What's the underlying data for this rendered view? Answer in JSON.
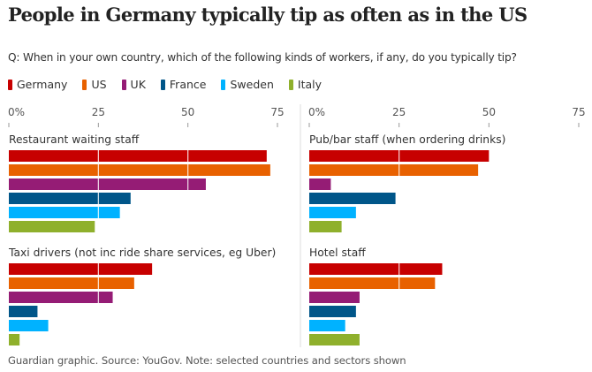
{
  "header": {
    "title": "People in Germany typically tip as often as in the US",
    "question": "Q: When in your own country, which of the following kinds of workers, if any, do you typically tip?"
  },
  "footer": {
    "source": "Guardian graphic. Source: YouGov. Note: selected countries and sectors shown"
  },
  "chart_data": {
    "type": "bar",
    "orientation": "horizontal",
    "title": "People in Germany typically tip as often as in the US",
    "subtitle": "Q: When in your own country, which of the following kinds of workers, if any, do you typically tip?",
    "unit": "%",
    "xlim": [
      0,
      75
    ],
    "ticks": [
      0,
      25,
      50,
      75
    ],
    "tick_labels": [
      "0%",
      "25",
      "50",
      "75"
    ],
    "grid": true,
    "legend_position": "top-left",
    "series": [
      {
        "name": "Germany",
        "color": "#c70000"
      },
      {
        "name": "US",
        "color": "#e86100"
      },
      {
        "name": "UK",
        "color": "#951c75"
      },
      {
        "name": "France",
        "color": "#005689"
      },
      {
        "name": "Sweden",
        "color": "#00b2ff"
      },
      {
        "name": "Italy",
        "color": "#8fb02c"
      }
    ],
    "panels": [
      {
        "category": "Restaurant waiting staff",
        "values": [
          72,
          73,
          55,
          34,
          31,
          24
        ]
      },
      {
        "category": "Pub/bar staff (when ordering drinks)",
        "values": [
          50,
          47,
          6,
          24,
          13,
          9
        ]
      },
      {
        "category": "Taxi drivers (not inc ride share services, eg Uber)",
        "values": [
          40,
          35,
          29,
          8,
          11,
          3
        ]
      },
      {
        "category": "Hotel staff",
        "values": [
          37,
          35,
          14,
          13,
          10,
          14
        ]
      }
    ],
    "source": "Guardian graphic. Source: YouGov. Note: selected countries and sectors shown"
  }
}
